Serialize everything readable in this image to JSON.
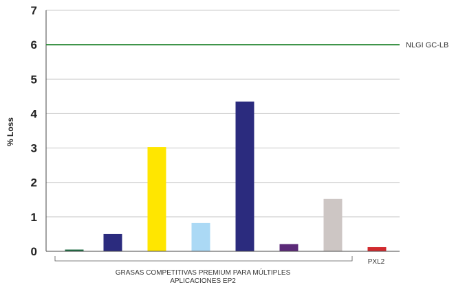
{
  "chart_data": {
    "type": "bar",
    "ylabel": "% Loss",
    "ylim": [
      0,
      7
    ],
    "yticks": [
      "0",
      "1",
      "2",
      "3",
      "4",
      "5",
      "6",
      "7"
    ],
    "grid": true,
    "series": [
      {
        "values": [
          0.05,
          0.5,
          3.03,
          0.82,
          4.35,
          0.21,
          1.52,
          0.12
        ],
        "colors": [
          "#1f6b43",
          "#2b2b7e",
          "#ffe600",
          "#abd9f5",
          "#2b2b7e",
          "#5b2a78",
          "#cdc6c4",
          "#d12a2e"
        ]
      }
    ],
    "reference_line": {
      "value": 6,
      "label": "NLGI GC-LB",
      "color": "#2e8b3a"
    },
    "group_labels": [
      {
        "text_line1": "GRASAS COMPETITIVAS PREMIUM PARA MÚLTIPLES",
        "text_line2": "APLICACIONES EP2"
      },
      {
        "text_line1": "PXL2"
      }
    ]
  }
}
